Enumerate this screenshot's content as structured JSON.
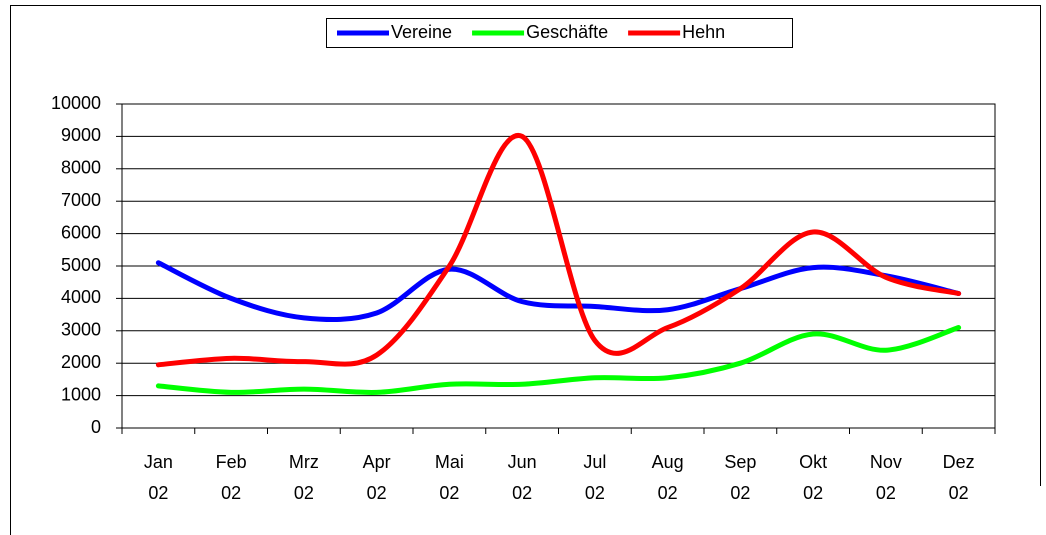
{
  "chart_data": {
    "type": "line",
    "categories": [
      "Jan 02",
      "Feb 02",
      "Mrz 02",
      "Apr 02",
      "Mai 02",
      "Jun 02",
      "Jul 02",
      "Aug 02",
      "Sep 02",
      "Okt 02",
      "Nov 02",
      "Dez 02"
    ],
    "series": [
      {
        "name": "Vereine",
        "color": "#0000ff",
        "values": [
          5100,
          4000,
          3400,
          3550,
          4900,
          3900,
          3750,
          3650,
          4300,
          4950,
          4700,
          4150
        ]
      },
      {
        "name": "Geschäfte",
        "color": "#00ff00",
        "values": [
          1300,
          1100,
          1200,
          1100,
          1350,
          1350,
          1550,
          1550,
          2000,
          2900,
          2400,
          3100
        ]
      },
      {
        "name": "Hehn",
        "color": "#ff0000",
        "values": [
          1950,
          2150,
          2050,
          2250,
          5000,
          9000,
          2700,
          3100,
          4300,
          6050,
          4650,
          4150
        ]
      }
    ],
    "ylim": [
      0,
      10000
    ],
    "yticks": [
      0,
      1000,
      2000,
      3000,
      4000,
      5000,
      6000,
      7000,
      8000,
      9000,
      10000
    ],
    "grid": true,
    "smooth": true,
    "legend": "top"
  }
}
